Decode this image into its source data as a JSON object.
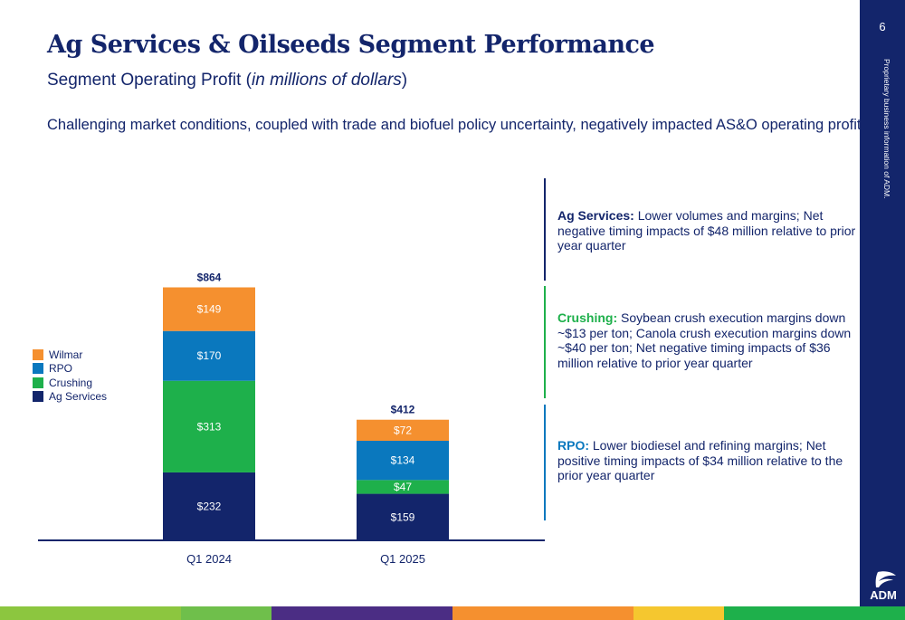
{
  "header": {
    "title": "Ag Services & Oilseeds Segment Performance",
    "subtitle_main": "Segment Operating Profit",
    "subtitle_open": "(",
    "subtitle_note": "in millions of dollars",
    "subtitle_close": ")",
    "headline": "Challenging market conditions, coupled with trade and biofuel policy uncertainty, negatively impacted AS&O operating profit"
  },
  "chart_data": {
    "type": "bar",
    "stacked": true,
    "categories": [
      "Q1 2024",
      "Q1 2025"
    ],
    "series": [
      {
        "name": "Ag Services",
        "color": "#13256b",
        "values": [
          232,
          159
        ],
        "labels": [
          "$232",
          "$159"
        ]
      },
      {
        "name": "Crushing",
        "color": "#1eb04b",
        "values": [
          313,
          47
        ],
        "labels": [
          "$313",
          "$47"
        ]
      },
      {
        "name": "RPO",
        "color": "#0a78be",
        "values": [
          170,
          134
        ],
        "labels": [
          "$170",
          "$134"
        ]
      },
      {
        "name": "Wilmar",
        "color": "#f5902f",
        "values": [
          149,
          72
        ],
        "labels": [
          "$149",
          "$72"
        ]
      }
    ],
    "totals": [
      864,
      412
    ],
    "total_labels": [
      "$864",
      "$412"
    ],
    "legend_order": [
      "Wilmar",
      "RPO",
      "Crushing",
      "Ag Services"
    ],
    "legend_position": "left",
    "ylim": [
      0,
      864
    ],
    "grid": false,
    "xlabel": "",
    "ylabel": ""
  },
  "commentary": [
    {
      "label": "Ag Services:",
      "color": "#13256b",
      "text": " Lower volumes and margins; Net negative timing impacts of $48 million relative to prior year quarter"
    },
    {
      "label": "Crushing:",
      "color": "#1eb04b",
      "text": " Soybean crush execution margins down ~$13 per ton; Canola crush execution margins down ~$40 per ton; Net negative timing impacts of $36 million relative to prior year quarter"
    },
    {
      "label": "RPO:",
      "color": "#0a78be",
      "text": " Lower biodiesel and refining margins; Net positive timing impacts of $34 million relative to the prior year quarter"
    }
  ],
  "sidebar": {
    "page_number": "6",
    "notice": "Proprietary business information of ADM.",
    "logo_text": "ADM"
  },
  "colors": {
    "navy": "#13256b",
    "footer": [
      "#8cc63f",
      "#8cc63f",
      "#6fbf4b",
      "#4b2d84",
      "#4b2d84",
      "#f5902f",
      "#f5902f",
      "#f5c72f",
      "#1eb04b",
      "#1eb04b"
    ]
  }
}
